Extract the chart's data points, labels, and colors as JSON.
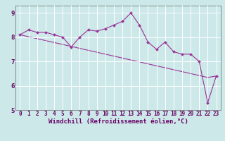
{
  "x_data": [
    0,
    1,
    2,
    3,
    4,
    5,
    6,
    7,
    8,
    9,
    10,
    11,
    12,
    13,
    14,
    15,
    16,
    17,
    18,
    19,
    20,
    21,
    22,
    23
  ],
  "y_main": [
    8.1,
    8.3,
    8.2,
    8.2,
    8.1,
    8.0,
    7.6,
    8.0,
    8.3,
    8.25,
    8.35,
    8.5,
    8.65,
    9.0,
    8.5,
    7.8,
    7.5,
    7.8,
    7.4,
    7.3,
    7.3,
    7.0,
    5.3,
    6.4
  ],
  "y_trend": [
    8.1,
    8.02,
    7.94,
    7.86,
    7.78,
    7.7,
    7.62,
    7.54,
    7.46,
    7.38,
    7.3,
    7.22,
    7.14,
    7.06,
    6.98,
    6.9,
    6.82,
    6.74,
    6.66,
    6.58,
    6.5,
    6.42,
    6.34,
    6.4
  ],
  "line_color": "#993399",
  "bg_color": "#cce8e8",
  "grid_color": "#ffffff",
  "xlabel": "Windchill (Refroidissement éolien,°C)",
  "ylim": [
    5,
    9.3
  ],
  "xlim": [
    -0.5,
    23.5
  ],
  "yticks": [
    5,
    6,
    7,
    8,
    9
  ],
  "xticks": [
    0,
    1,
    2,
    3,
    4,
    5,
    6,
    7,
    8,
    9,
    10,
    11,
    12,
    13,
    14,
    15,
    16,
    17,
    18,
    19,
    20,
    21,
    22,
    23
  ],
  "tick_fontsize": 5.5,
  "label_fontsize": 6.5
}
